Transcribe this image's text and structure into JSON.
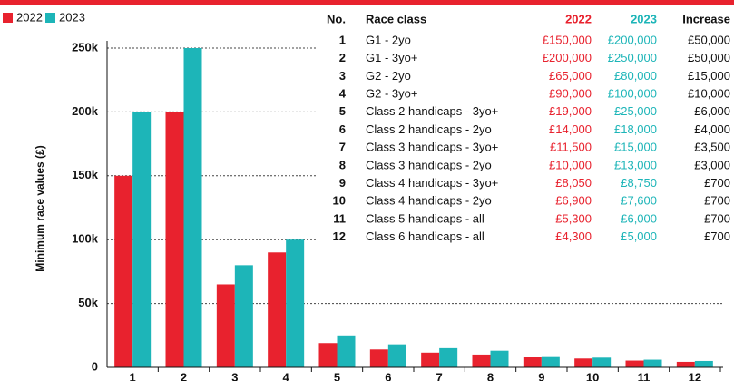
{
  "chart_data": {
    "type": "bar",
    "y_label": "Minimum race values (£)",
    "categories": [
      "1",
      "2",
      "3",
      "4",
      "5",
      "6",
      "7",
      "8",
      "9",
      "10",
      "11",
      "12"
    ],
    "series": [
      {
        "name": "2022",
        "color": "#e8222e",
        "values": [
          150000,
          200000,
          65000,
          90000,
          19000,
          14000,
          11500,
          10000,
          8050,
          6900,
          5300,
          4300
        ]
      },
      {
        "name": "2023",
        "color": "#1db5b8",
        "values": [
          200000,
          250000,
          80000,
          100000,
          25000,
          18000,
          15000,
          13000,
          8750,
          7600,
          6000,
          5000
        ]
      }
    ],
    "ylim": [
      0,
      250000
    ],
    "yticks": [
      0,
      {
        "value": 50000,
        "label": "50k"
      },
      {
        "value": 100000,
        "label": "100k"
      },
      {
        "value": 150000,
        "label": "150k"
      },
      {
        "value": 200000,
        "label": "200k"
      },
      {
        "value": 250000,
        "label": "250k"
      }
    ],
    "grid": true,
    "legend": "top-left",
    "table": {
      "columns": [
        "No.",
        "Race class",
        "2022",
        "2023",
        "Increase"
      ],
      "rows": [
        [
          "1",
          "G1 - 2yo",
          "£150,000",
          "£200,000",
          "£50,000"
        ],
        [
          "2",
          "G1 - 3yo+",
          "£200,000",
          "£250,000",
          "£50,000"
        ],
        [
          "3",
          "G2 - 2yo",
          "£65,000",
          "£80,000",
          "£15,000"
        ],
        [
          "4",
          "G2 - 3yo+",
          "£90,000",
          "£100,000",
          "£10,000"
        ],
        [
          "5",
          "Class 2 handicaps - 3yo+",
          "£19,000",
          "£25,000",
          "£6,000"
        ],
        [
          "6",
          "Class 2 handicaps - 2yo",
          "£14,000",
          "£18,000",
          "£4,000"
        ],
        [
          "7",
          "Class 3 handicaps - 3yo+",
          "£11,500",
          "£15,000",
          "£3,500"
        ],
        [
          "8",
          "Class 3 handicaps - 2yo",
          "£10,000",
          "£13,000",
          "£3,000"
        ],
        [
          "9",
          "Class 4 handicaps - 3yo+",
          "£8,050",
          "£8,750",
          "£700"
        ],
        [
          "10",
          "Class 4 handicaps - 2yo",
          "£6,900",
          "£7,600",
          "£700"
        ],
        [
          "11",
          "Class 5 handicaps - all",
          "£5,300",
          "£6,000",
          "£700"
        ],
        [
          "12",
          "Class 6 handicaps - all",
          "£4,300",
          "£5,000",
          "£700"
        ]
      ]
    }
  }
}
